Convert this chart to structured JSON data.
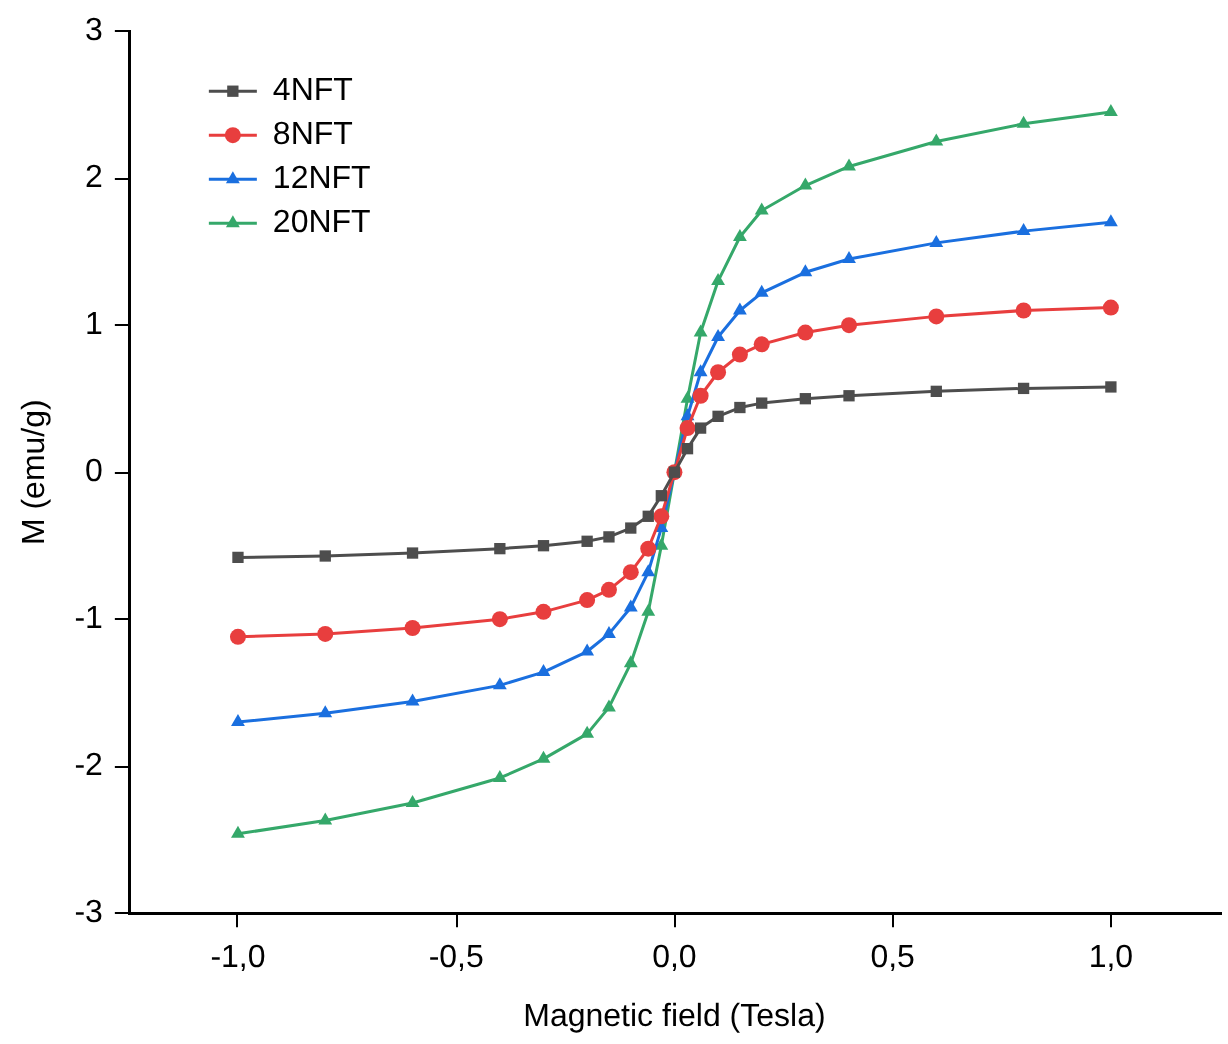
{
  "chart_data": {
    "type": "line",
    "xlabel": "Magnetic field (Tesla)",
    "ylabel": "M (emu/g)",
    "x": [
      -1,
      -0.8,
      -0.6,
      -0.4,
      -0.3,
      -0.2,
      -0.15,
      -0.1,
      -0.06,
      -0.03,
      0,
      0.03,
      0.06,
      0.1,
      0.15,
      0.2,
      0.3,
      0.4,
      0.6,
      0.8,
      1
    ],
    "series": [
      {
        "name": "4NFT",
        "color": "#4d4d4d",
        "marker": "square",
        "values": [
          -0.58,
          -0.57,
          -0.55,
          -0.52,
          -0.5,
          -0.47,
          -0.44,
          -0.38,
          -0.3,
          -0.16,
          0,
          0.16,
          0.3,
          0.38,
          0.44,
          0.47,
          0.5,
          0.52,
          0.55,
          0.57,
          0.58
        ]
      },
      {
        "name": "8NFT",
        "color": "#e83e3e",
        "marker": "circle",
        "values": [
          -1.12,
          -1.1,
          -1.06,
          -1.0,
          -0.95,
          -0.87,
          -0.8,
          -0.68,
          -0.52,
          -0.3,
          0,
          0.3,
          0.52,
          0.68,
          0.8,
          0.87,
          0.95,
          1.0,
          1.06,
          1.1,
          1.12
        ]
      },
      {
        "name": "12NFT",
        "color": "#1a6fdf",
        "marker": "triangle",
        "values": [
          -1.7,
          -1.64,
          -1.56,
          -1.45,
          -1.36,
          -1.22,
          -1.1,
          -0.92,
          -0.68,
          -0.38,
          0,
          0.38,
          0.68,
          0.92,
          1.1,
          1.22,
          1.36,
          1.45,
          1.56,
          1.64,
          1.7
        ]
      },
      {
        "name": "20NFT",
        "color": "#35a86a",
        "marker": "triangle",
        "values": [
          -2.46,
          -2.37,
          -2.25,
          -2.08,
          -1.95,
          -1.78,
          -1.6,
          -1.3,
          -0.95,
          -0.5,
          0,
          0.5,
          0.95,
          1.3,
          1.6,
          1.78,
          1.95,
          2.08,
          2.25,
          2.37,
          2.45
        ]
      }
    ],
    "xlim": [
      -1.25,
      1.25
    ],
    "xticks": [
      {
        "value": -1,
        "label": "-1,0"
      },
      {
        "value": -0.5,
        "label": "-0,5"
      },
      {
        "value": 0,
        "label": "0,0"
      },
      {
        "value": 0.5,
        "label": "0,5"
      },
      {
        "value": 1,
        "label": "1,0"
      }
    ],
    "ylim": [
      -3,
      3
    ],
    "yticks": [
      -3,
      -2,
      -1,
      0,
      1,
      2,
      3
    ],
    "grid": false,
    "legend": "top left",
    "line_style": "solid"
  }
}
